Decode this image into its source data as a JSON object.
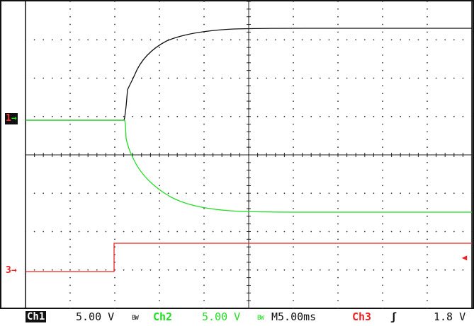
{
  "colors": {
    "ch1": "#111111",
    "ch2": "#22dd22",
    "ch3": "#ee2222",
    "grid": "#333333",
    "background": "#ffffff"
  },
  "markers": {
    "ch1": "1",
    "ch3": "3",
    "trigger_level_arrow": "◀"
  },
  "status": {
    "ch1_label": "Ch1",
    "ch1_scale": "5.00 V",
    "ch1_bw": "BW",
    "ch2_label": "Ch2",
    "ch2_scale": "5.00 V",
    "ch2_bw": "BW",
    "timebase": "M5.00ms",
    "trigger_source": "Ch3",
    "trigger_slope": "ʃ",
    "trigger_level": "1.8 V"
  }
}
